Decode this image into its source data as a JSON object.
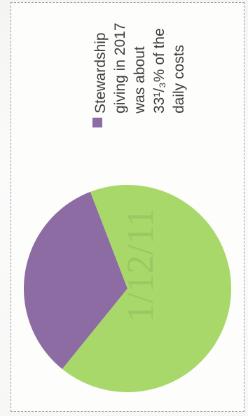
{
  "chart_data": {
    "type": "pie",
    "title": "",
    "slices": [
      {
        "label": "Stewardship giving in 2017 was about 33¹/₃% of the daily costs",
        "value": 33.33,
        "color": "#8c6ca3",
        "in_legend": true
      },
      {
        "label": "",
        "value": 66.67,
        "color": "#a9d86a",
        "in_legend": false
      }
    ],
    "legend": {
      "position": "right",
      "lines": [
        "Stewardship",
        "giving in 2017",
        "was about",
        "33¹/₃% of the",
        "daily costs"
      ]
    },
    "orientation": "rotated 90° counter-clockwise"
  },
  "watermark": "1/12/11"
}
